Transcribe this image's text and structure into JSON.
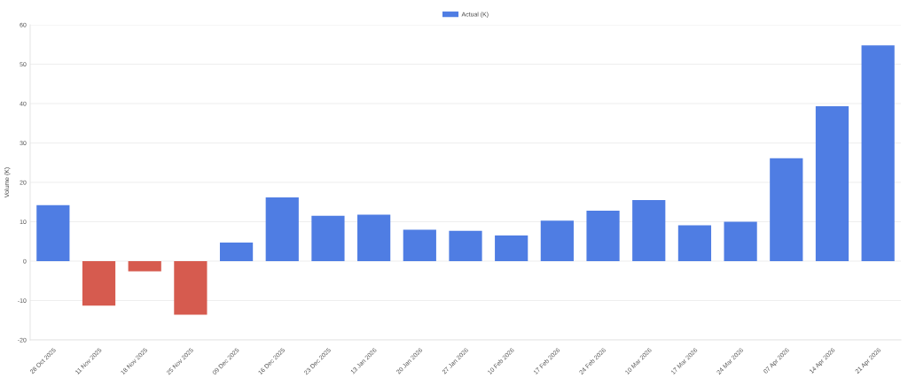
{
  "chart_data": {
    "type": "bar",
    "ylabel": "Volume (K)",
    "categories": [
      "28 Oct 2025",
      "11 Nov 2025",
      "18 Nov 2025",
      "25 Nov 2025",
      "09 Dec 2025",
      "16 Dec 2025",
      "23 Dec 2025",
      "13 Jan 2026",
      "20 Jan 2026",
      "27 Jan 2026",
      "10 Feb 2026",
      "17 Feb 2026",
      "24 Feb 2026",
      "10 Mar 2026",
      "17 Mar 2026",
      "24 Mar 2026",
      "07 Apr 2026",
      "14 Apr 2026",
      "21 Apr 2026"
    ],
    "series": [
      {
        "name": "Actual (K)",
        "color": "#4f7de3",
        "values": [
          14.2,
          -11.3,
          -2.6,
          -13.6,
          4.7,
          16.2,
          11.5,
          11.8,
          8.0,
          7.7,
          6.5,
          10.3,
          12.8,
          15.5,
          9.1,
          10.0,
          26.1,
          39.3,
          54.8
        ],
        "colors": [
          "#4f7de3",
          "#d65b4f",
          "#d65b4f",
          "#d65b4f",
          "#4f7de3",
          "#4f7de3",
          "#4f7de3",
          "#4f7de3",
          "#4f7de3",
          "#4f7de3",
          "#4f7de3",
          "#4f7de3",
          "#4f7de3",
          "#4f7de3",
          "#4f7de3",
          "#4f7de3",
          "#4f7de3",
          "#4f7de3",
          "#4f7de3"
        ]
      }
    ],
    "ylim": [
      -20,
      60
    ],
    "yticks": [
      -20,
      -10,
      0,
      10,
      20,
      30,
      40,
      50,
      60
    ],
    "grid": "y",
    "legend": "top"
  }
}
